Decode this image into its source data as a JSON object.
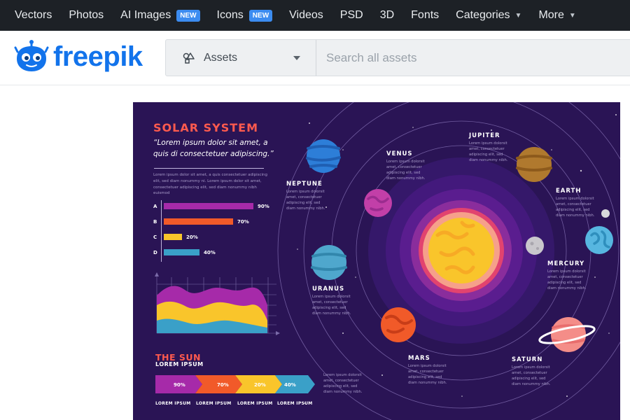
{
  "topnav": {
    "items": [
      {
        "label": "Vectors"
      },
      {
        "label": "Photos"
      },
      {
        "label": "AI Images",
        "badge": "NEW"
      },
      {
        "label": "Icons",
        "badge": "NEW"
      },
      {
        "label": "Videos"
      },
      {
        "label": "PSD"
      },
      {
        "label": "3D"
      },
      {
        "label": "Fonts"
      },
      {
        "label": "Categories"
      },
      {
        "label": "More"
      }
    ]
  },
  "header": {
    "logo_text": "freepik",
    "asset_type": "Assets",
    "search_placeholder": "Search all assets"
  },
  "poster": {
    "title": "SOLAR SYSTEM",
    "quote": "“Lorem ipsum dolor sit amet, a quis di consectetuer adipiscing.”",
    "lorem": "Lorem ipsum dolor sit amet, a quis consectetuer adipiscing elit, sed diam nonummy ni. Lorem ipsum dolor sit amet, consectetuer adipiscing elit, sed diam nonummy nibh euismod",
    "bars": [
      {
        "letter": "A",
        "value": 90,
        "label": "90%",
        "color": "#a62aa9"
      },
      {
        "letter": "B",
        "value": 70,
        "label": "70%",
        "color": "#f15a29"
      },
      {
        "letter": "C",
        "value": 20,
        "label": "20%",
        "color": "#f9c52b"
      },
      {
        "letter": "D",
        "value": 40,
        "label": "40%",
        "color": "#3aa0c8"
      }
    ],
    "sun_title": "THE SUN",
    "sun_subtitle": "LOREM IPSUM",
    "arrows": [
      {
        "pct": "90%",
        "caption": "LOREM IPSUM",
        "color": "#a62aa9"
      },
      {
        "pct": "70%",
        "caption": "LOREM IPSUM",
        "color": "#f15a29"
      },
      {
        "pct": "20%",
        "caption": "LOREM IPSUM",
        "color": "#f9c52b"
      },
      {
        "pct": "40%",
        "caption": "LOREM IPSUM",
        "color": "#3aa0c8"
      }
    ],
    "planet_blurb": "Lorem ipsum dolorsit amet, consectetuer adipiscing elit, sed diam nonummy nibh.",
    "planets": {
      "neptune": "NEPTUNE",
      "venus": "VENUS",
      "jupiter": "JUPITER",
      "earth": "EARTH",
      "uranus": "URANUS",
      "mercury": "MERCURY",
      "mars": "MARS",
      "saturn": "SATURN"
    }
  }
}
